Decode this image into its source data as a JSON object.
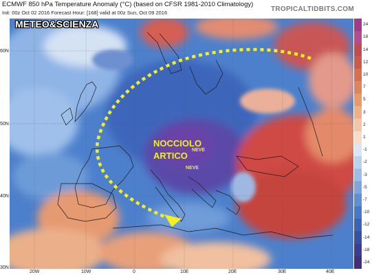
{
  "header": {
    "title": "ECMWF 850 hPa Temperature Anomaly (°C) (based on CFSR 1981-2010 Climatology)",
    "subtitle": "Init: 00z Oct 02 2016   Forecast Hour: [168]   valid at 00z Sun, Oct 09 2016",
    "brand": "TROPICALTIDBITS.COM"
  },
  "watermark": "METEO&SCIENZA",
  "annotations": {
    "main_line1": "NOCCIOLO",
    "main_line2": "ARTICO",
    "snow1": "NEVE",
    "snow2": "NEVE",
    "arrow_color": "#f4ef1e"
  },
  "axes": {
    "lat_labels": [
      "60N",
      "50N",
      "40N",
      "30N"
    ],
    "lon_labels": [
      "20W",
      "10W",
      "0",
      "10E",
      "20E",
      "30E",
      "40E"
    ]
  },
  "colorbar": {
    "labels": [
      "24",
      "18",
      "14",
      "12",
      "10",
      "7",
      "5",
      "3",
      "2",
      "1",
      "-1",
      "-2",
      "-3",
      "-5",
      "-7",
      "-10",
      "-12",
      "-14",
      "-18",
      "-24"
    ],
    "colors": [
      "#a03a8c",
      "#b54b90",
      "#c24a50",
      "#cc5a4c",
      "#d86e52",
      "#e1835c",
      "#e89a6a",
      "#efb088",
      "#f3c6a8",
      "#f7dcc8",
      "#dbe6f4",
      "#bcd1ec",
      "#9fbce4",
      "#7ea6dc",
      "#5f8fd2",
      "#4679c6",
      "#3a63b6",
      "#3650a2",
      "#3a3e8e",
      "#412f7c"
    ]
  }
}
